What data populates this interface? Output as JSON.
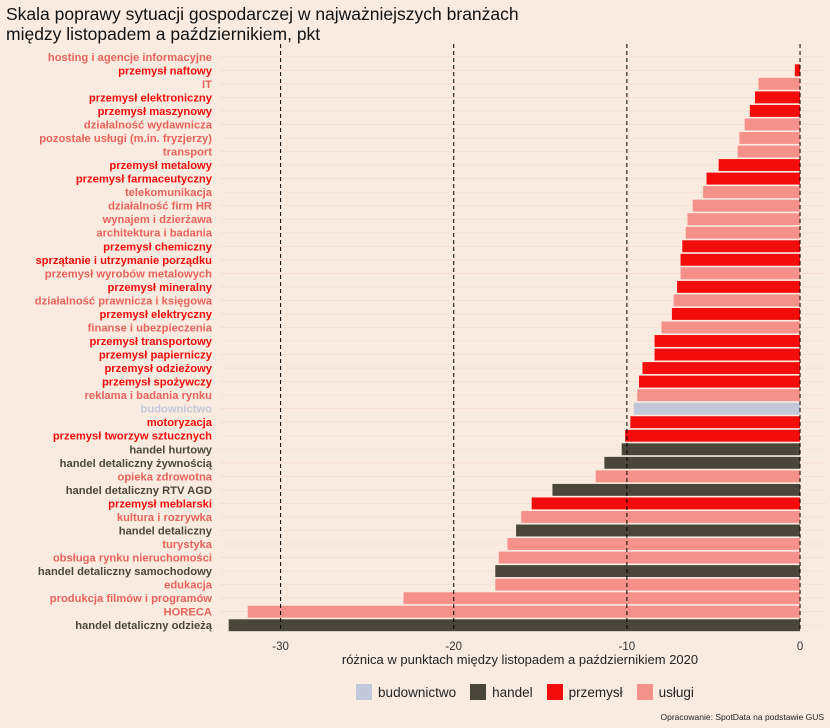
{
  "title_lines": [
    "Skala poprawy sytuacji gospodarczej w najważniejszych branżach",
    "między listopadem a październikiem, pkt"
  ],
  "caption": "Opracowanie: SpotData na podstawie GUS",
  "colors": {
    "background": "#faebe0",
    "budownictwo": "#c2c7d9",
    "handel": "#4a473a",
    "przemysł": "#f20c0c",
    "usługi": "#f5918a",
    "usługi_label": "#e6635c"
  },
  "chart_data": {
    "type": "bar",
    "orientation": "horizontal",
    "xlabel": "różnica w punktach między listopadem a październikiem 2020",
    "xlim": [
      -33.5,
      1.5
    ],
    "xticks": [
      -30,
      -20,
      -10,
      0
    ],
    "xtick_labels": [
      "-30",
      "-20",
      "-10",
      "0"
    ],
    "vlines": [
      -30,
      -20,
      -10,
      0
    ],
    "grid": true,
    "legend_position": "bottom",
    "legend": [
      "budownictwo",
      "handel",
      "przemysł",
      "usługi"
    ],
    "categories": [
      "hosting i agencje informacyjne",
      "przemysł naftowy",
      "IT",
      "przemysł elektroniczny",
      "przemysł maszynowy",
      "działalność wydawnicza",
      "pozostałe usługi (m.in. fryzjerzy)",
      "transport",
      "przemysł metalowy",
      "przemysł farmaceutyczny",
      "telekomunikacja",
      "działalność firm HR",
      "wynajem i dzierżawa",
      "architektura i badania",
      "przemysł chemiczny",
      "sprzątanie i utrzymanie porządku",
      "przemysł wyrobów metalowych",
      "przemysł mineralny",
      "działalność prawnicza i księgowa",
      "przemysł elektryczny",
      "finanse i ubezpieczenia",
      "przemysł transportowy",
      "przemysł papierniczy",
      "przemysł odzieżowy",
      "przemysł spożywczy",
      "reklama i badania rynku",
      "budownictwo",
      "motoryzacja",
      "przemysł tworzyw sztucznych",
      "handel hurtowy",
      "handel detaliczny żywnością",
      "opieka zdrowotna",
      "handel detaliczny RTV AGD",
      "przemysł meblarski",
      "kultura i rozrywka",
      "handel detaliczny",
      "turystyka",
      "obsługa rynku nieruchomości",
      "handel detaliczny samochodowy",
      "edukacja",
      "produkcja filmów i programów",
      "HORECA",
      "handel detaliczny odzieżą"
    ],
    "values": [
      0,
      -0.3,
      -2.4,
      -2.6,
      -2.9,
      -3.2,
      -3.5,
      -3.6,
      -4.7,
      -5.4,
      -5.6,
      -6.2,
      -6.5,
      -6.6,
      -6.8,
      -6.9,
      -6.9,
      -7.1,
      -7.3,
      -7.4,
      -8.0,
      -8.4,
      -8.4,
      -9.1,
      -9.3,
      -9.4,
      -9.6,
      -9.8,
      -10.1,
      -10.3,
      -11.3,
      -11.8,
      -14.3,
      -15.5,
      -16.1,
      -16.4,
      -16.9,
      -17.4,
      -17.6,
      -17.6,
      -22.9,
      -31.9,
      -33.0
    ],
    "groups": [
      "usługi",
      "przemysł",
      "usługi",
      "przemysł",
      "przemysł",
      "usługi",
      "usługi",
      "usługi",
      "przemysł",
      "przemysł",
      "usługi",
      "usługi",
      "usługi",
      "usługi",
      "przemysł",
      "przemysł",
      "usługi",
      "przemysł",
      "usługi",
      "przemysł",
      "usługi",
      "przemysł",
      "przemysł",
      "przemysł",
      "przemysł",
      "usługi",
      "budownictwo",
      "przemysł",
      "przemysł",
      "handel",
      "handel",
      "usługi",
      "handel",
      "przemysł",
      "usługi",
      "handel",
      "usługi",
      "usługi",
      "handel",
      "usługi",
      "usługi",
      "usługi",
      "handel"
    ]
  }
}
